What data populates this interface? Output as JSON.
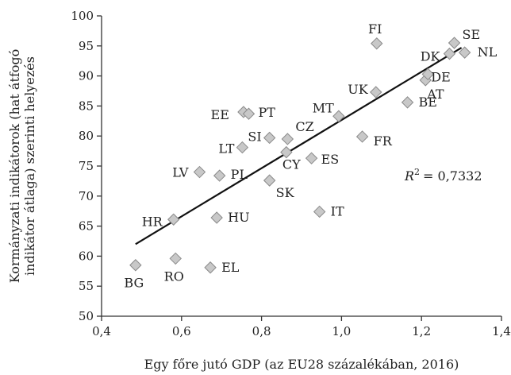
{
  "chart_data": {
    "type": "scatter",
    "title": "",
    "xlabel": "Egy főre jutó GDP (az EU28 százalékában, 2016)",
    "ylabel_lines": [
      "Kormányzati indikátorok (hat átfogó",
      "indikátor átlaga) szerinti helyezés"
    ],
    "xlim": [
      0.4,
      1.4
    ],
    "ylim": [
      50,
      100
    ],
    "xticks": [
      0.4,
      0.6,
      0.8,
      1.0,
      1.2,
      1.4
    ],
    "xtick_labels": [
      "0,4",
      "0,6",
      "0,8",
      "1,0",
      "1,2",
      "1,4"
    ],
    "yticks": [
      50,
      55,
      60,
      65,
      70,
      75,
      80,
      85,
      90,
      95,
      100
    ],
    "ytick_labels": [
      "50",
      "55",
      "60",
      "65",
      "70",
      "75",
      "80",
      "85",
      "90",
      "95",
      "100"
    ],
    "grid": false,
    "r2_label": "= 0,7332",
    "r2_symbol": "R",
    "r2_sup": "2",
    "trendline": {
      "x": [
        0.485,
        1.3
      ],
      "y": [
        62.0,
        94.7
      ]
    },
    "points": [
      {
        "label": "BG",
        "x": 0.485,
        "y": 58.5
      },
      {
        "label": "RO",
        "x": 0.585,
        "y": 59.6
      },
      {
        "label": "EL",
        "x": 0.672,
        "y": 58.1
      },
      {
        "label": "HR",
        "x": 0.58,
        "y": 66.1
      },
      {
        "label": "HU",
        "x": 0.688,
        "y": 66.4
      },
      {
        "label": "LV",
        "x": 0.645,
        "y": 74.0
      },
      {
        "label": "PL",
        "x": 0.695,
        "y": 73.4
      },
      {
        "label": "LT",
        "x": 0.752,
        "y": 78.1
      },
      {
        "label": "SI",
        "x": 0.82,
        "y": 79.7
      },
      {
        "label": "EE",
        "x": 0.755,
        "y": 84.0
      },
      {
        "label": "PT",
        "x": 0.768,
        "y": 83.7
      },
      {
        "label": "CZ",
        "x": 0.865,
        "y": 79.5
      },
      {
        "label": "CY",
        "x": 0.862,
        "y": 77.3
      },
      {
        "label": "SK",
        "x": 0.82,
        "y": 72.6
      },
      {
        "label": "ES",
        "x": 0.925,
        "y": 76.3
      },
      {
        "label": "MT",
        "x": 0.993,
        "y": 83.3
      },
      {
        "label": "IT",
        "x": 0.945,
        "y": 67.4
      },
      {
        "label": "FR",
        "x": 1.052,
        "y": 79.9
      },
      {
        "label": "UK",
        "x": 1.086,
        "y": 87.3
      },
      {
        "label": "FI",
        "x": 1.088,
        "y": 95.4
      },
      {
        "label": "BE",
        "x": 1.165,
        "y": 85.6
      },
      {
        "label": "AT",
        "x": 1.21,
        "y": 89.3
      },
      {
        "label": "DE",
        "x": 1.216,
        "y": 90.3
      },
      {
        "label": "DK",
        "x": 1.27,
        "y": 93.7
      },
      {
        "label": "SE",
        "x": 1.282,
        "y": 95.5
      },
      {
        "label": "NL",
        "x": 1.308,
        "y": 93.9
      }
    ]
  }
}
